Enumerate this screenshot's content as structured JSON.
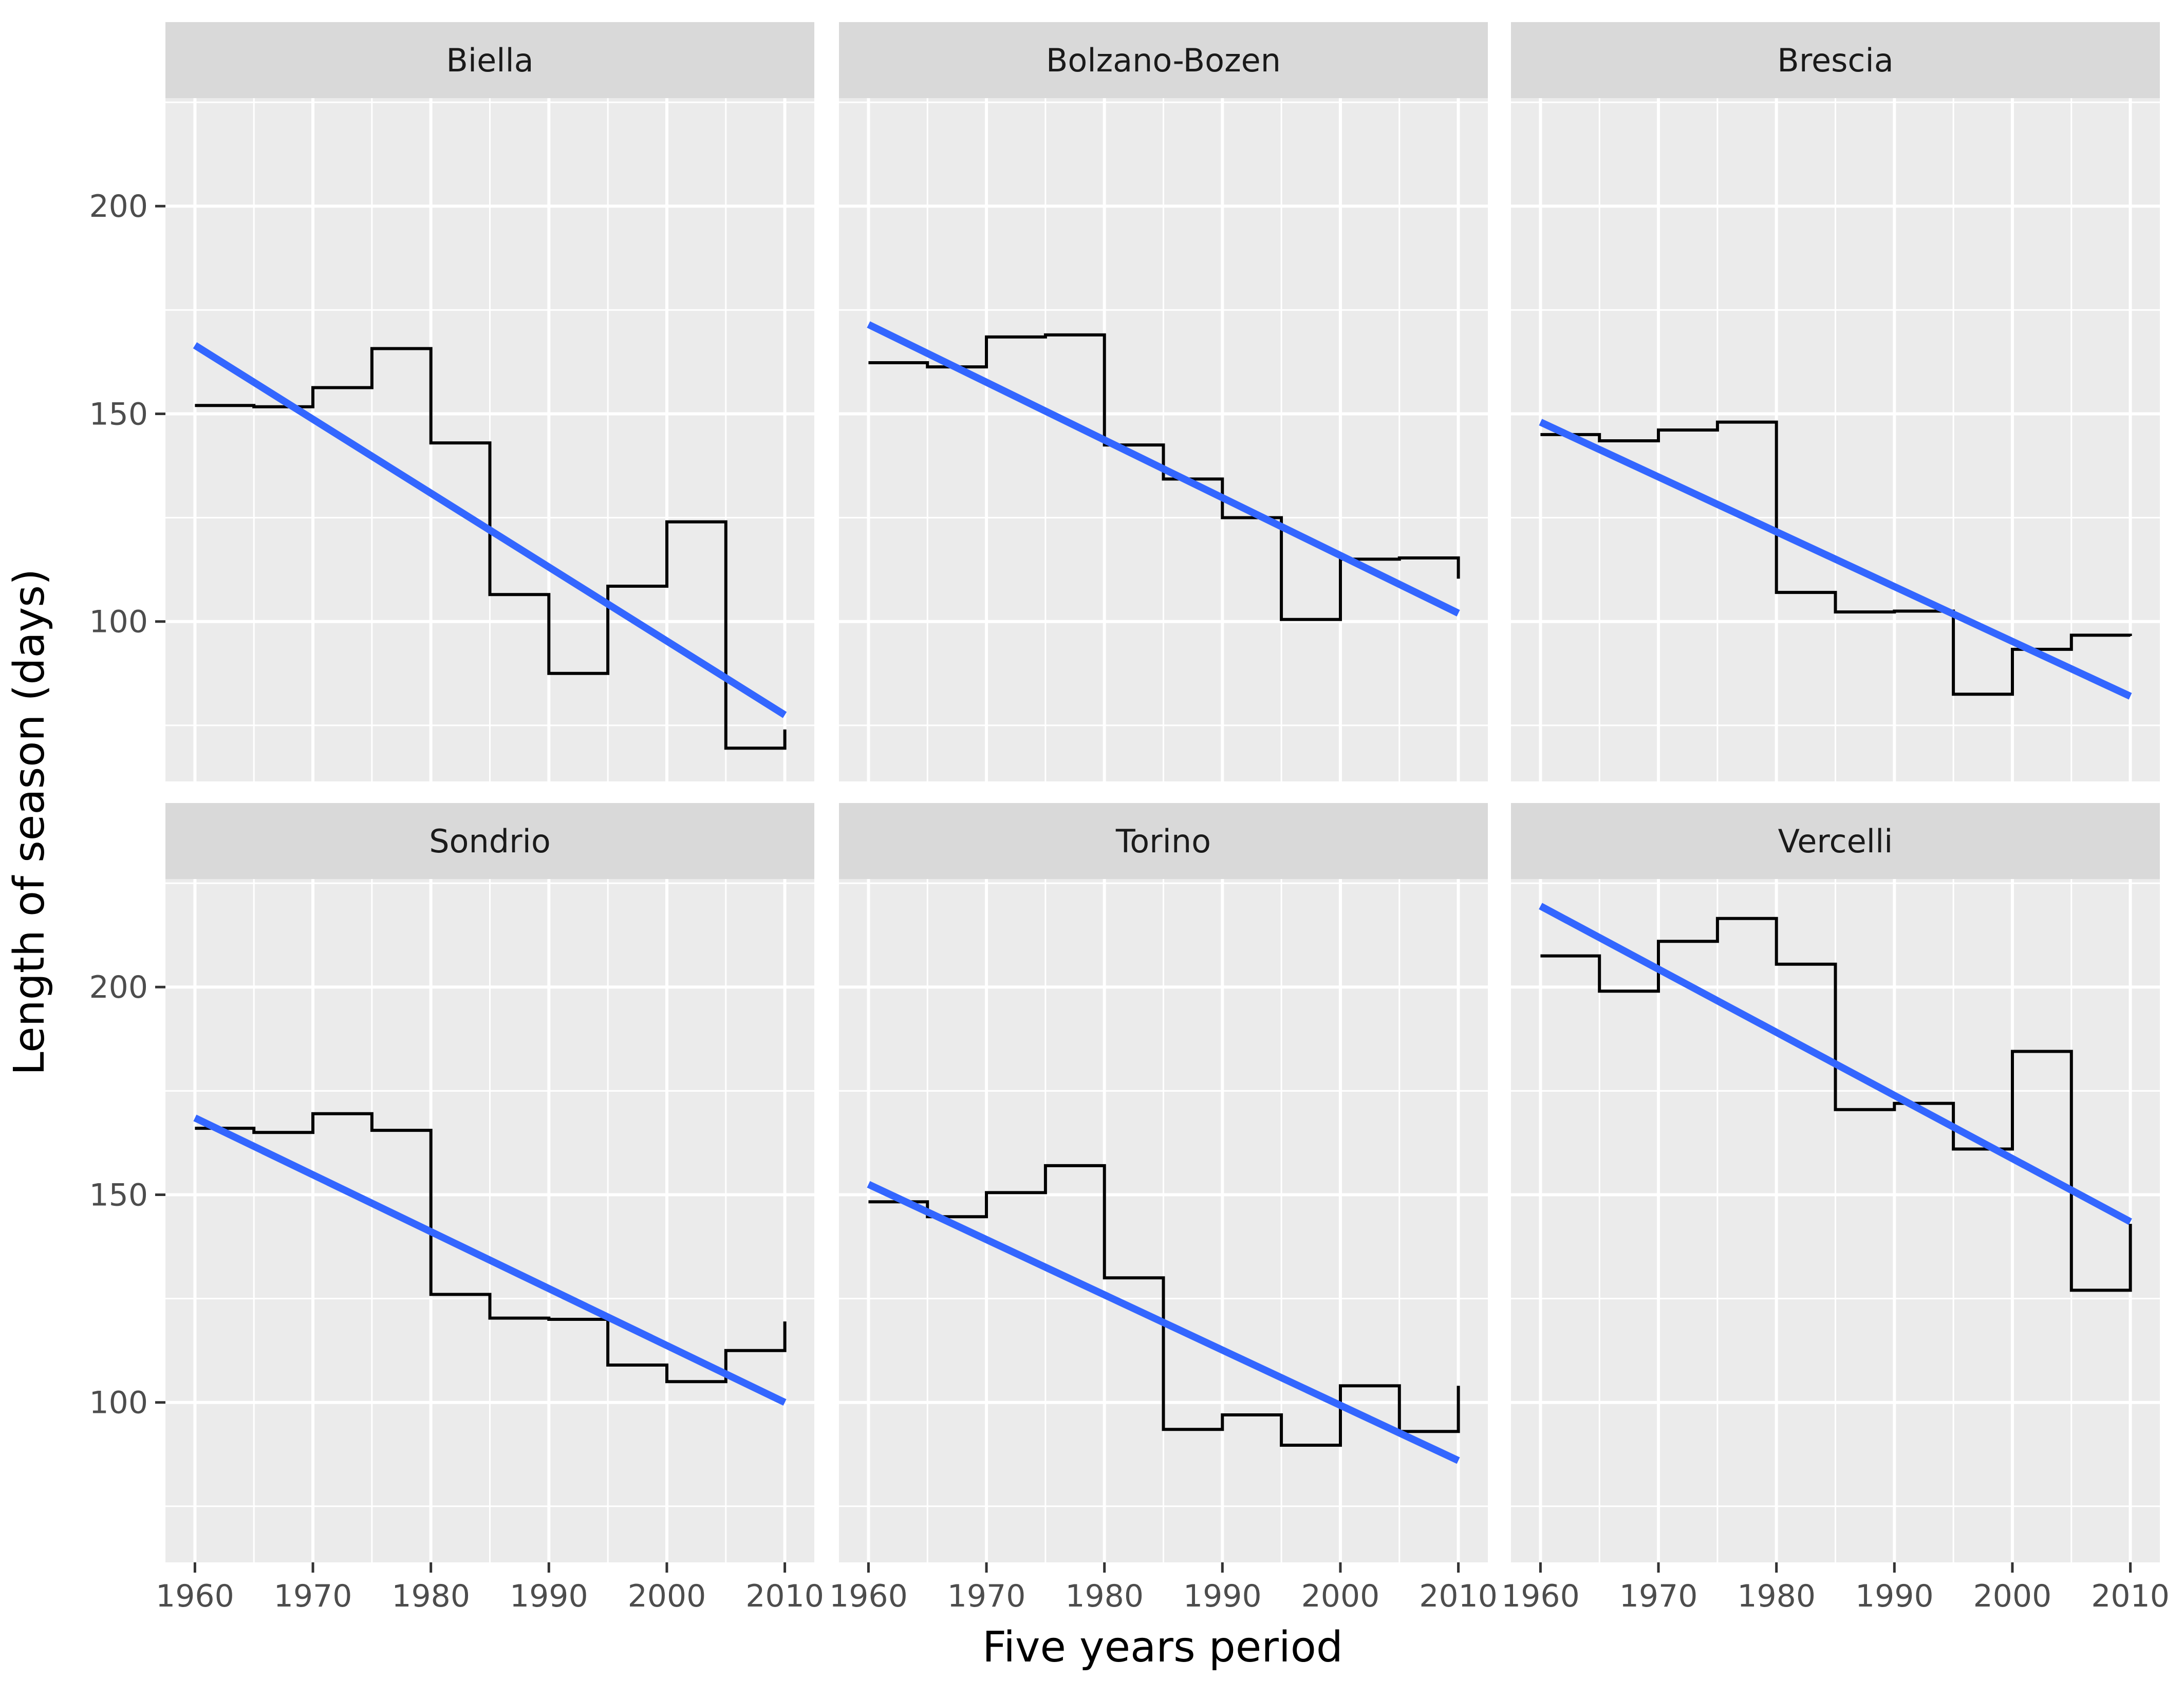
{
  "chart_data": {
    "type": "line",
    "layout": "facet-grid",
    "xlabel": "Five years period",
    "ylabel": "Length of season (days)",
    "xlim": [
      1957.5,
      2012.5
    ],
    "ylim": [
      61.5,
      226
    ],
    "x_ticks": [
      1960,
      1970,
      1980,
      1990,
      2000,
      2010
    ],
    "y_ticks": [
      100,
      150,
      200
    ],
    "grid": true,
    "colors": {
      "panel_background": "#ebebeb",
      "strip_background": "#d9d9d9",
      "grid": "#ffffff",
      "step_line": "#000000",
      "trend_line": "#3366ff"
    },
    "x": [
      1960,
      1965,
      1970,
      1975,
      1980,
      1985,
      1990,
      1995,
      2000,
      2005,
      2010
    ],
    "panels": [
      {
        "name": "Biella",
        "values": [
          152,
          151.7,
          156.3,
          165.7,
          143,
          106.5,
          87.5,
          108.5,
          124,
          69.5,
          74
        ],
        "trend": [
          166.5,
          77.5
        ]
      },
      {
        "name": "Bolzano-Bozen",
        "values": [
          162.3,
          161.3,
          168.5,
          169,
          142.5,
          134.3,
          125,
          100.5,
          115,
          115.3,
          110.3
        ],
        "trend": [
          171.5,
          102
        ]
      },
      {
        "name": "Brescia",
        "values": [
          145,
          143.5,
          146.1,
          148,
          107,
          102.3,
          102.5,
          82.5,
          93.3,
          96.7,
          96.5
        ],
        "trend": [
          148,
          82
        ]
      },
      {
        "name": "Sondrio",
        "values": [
          166,
          165,
          169.5,
          165.5,
          126,
          120.3,
          120,
          109,
          105,
          112.5,
          119.5
        ],
        "trend": [
          168.5,
          100
        ]
      },
      {
        "name": "Torino",
        "values": [
          148.3,
          144.7,
          150.5,
          157,
          130,
          93.5,
          97,
          89.7,
          104,
          93,
          104
        ],
        "trend": [
          152.5,
          86
        ]
      },
      {
        "name": "Vercelli",
        "values": [
          207.5,
          199,
          211,
          216.5,
          205.5,
          170.5,
          172,
          161,
          184.5,
          127,
          143
        ],
        "trend": [
          219.5,
          143.5
        ]
      }
    ]
  }
}
